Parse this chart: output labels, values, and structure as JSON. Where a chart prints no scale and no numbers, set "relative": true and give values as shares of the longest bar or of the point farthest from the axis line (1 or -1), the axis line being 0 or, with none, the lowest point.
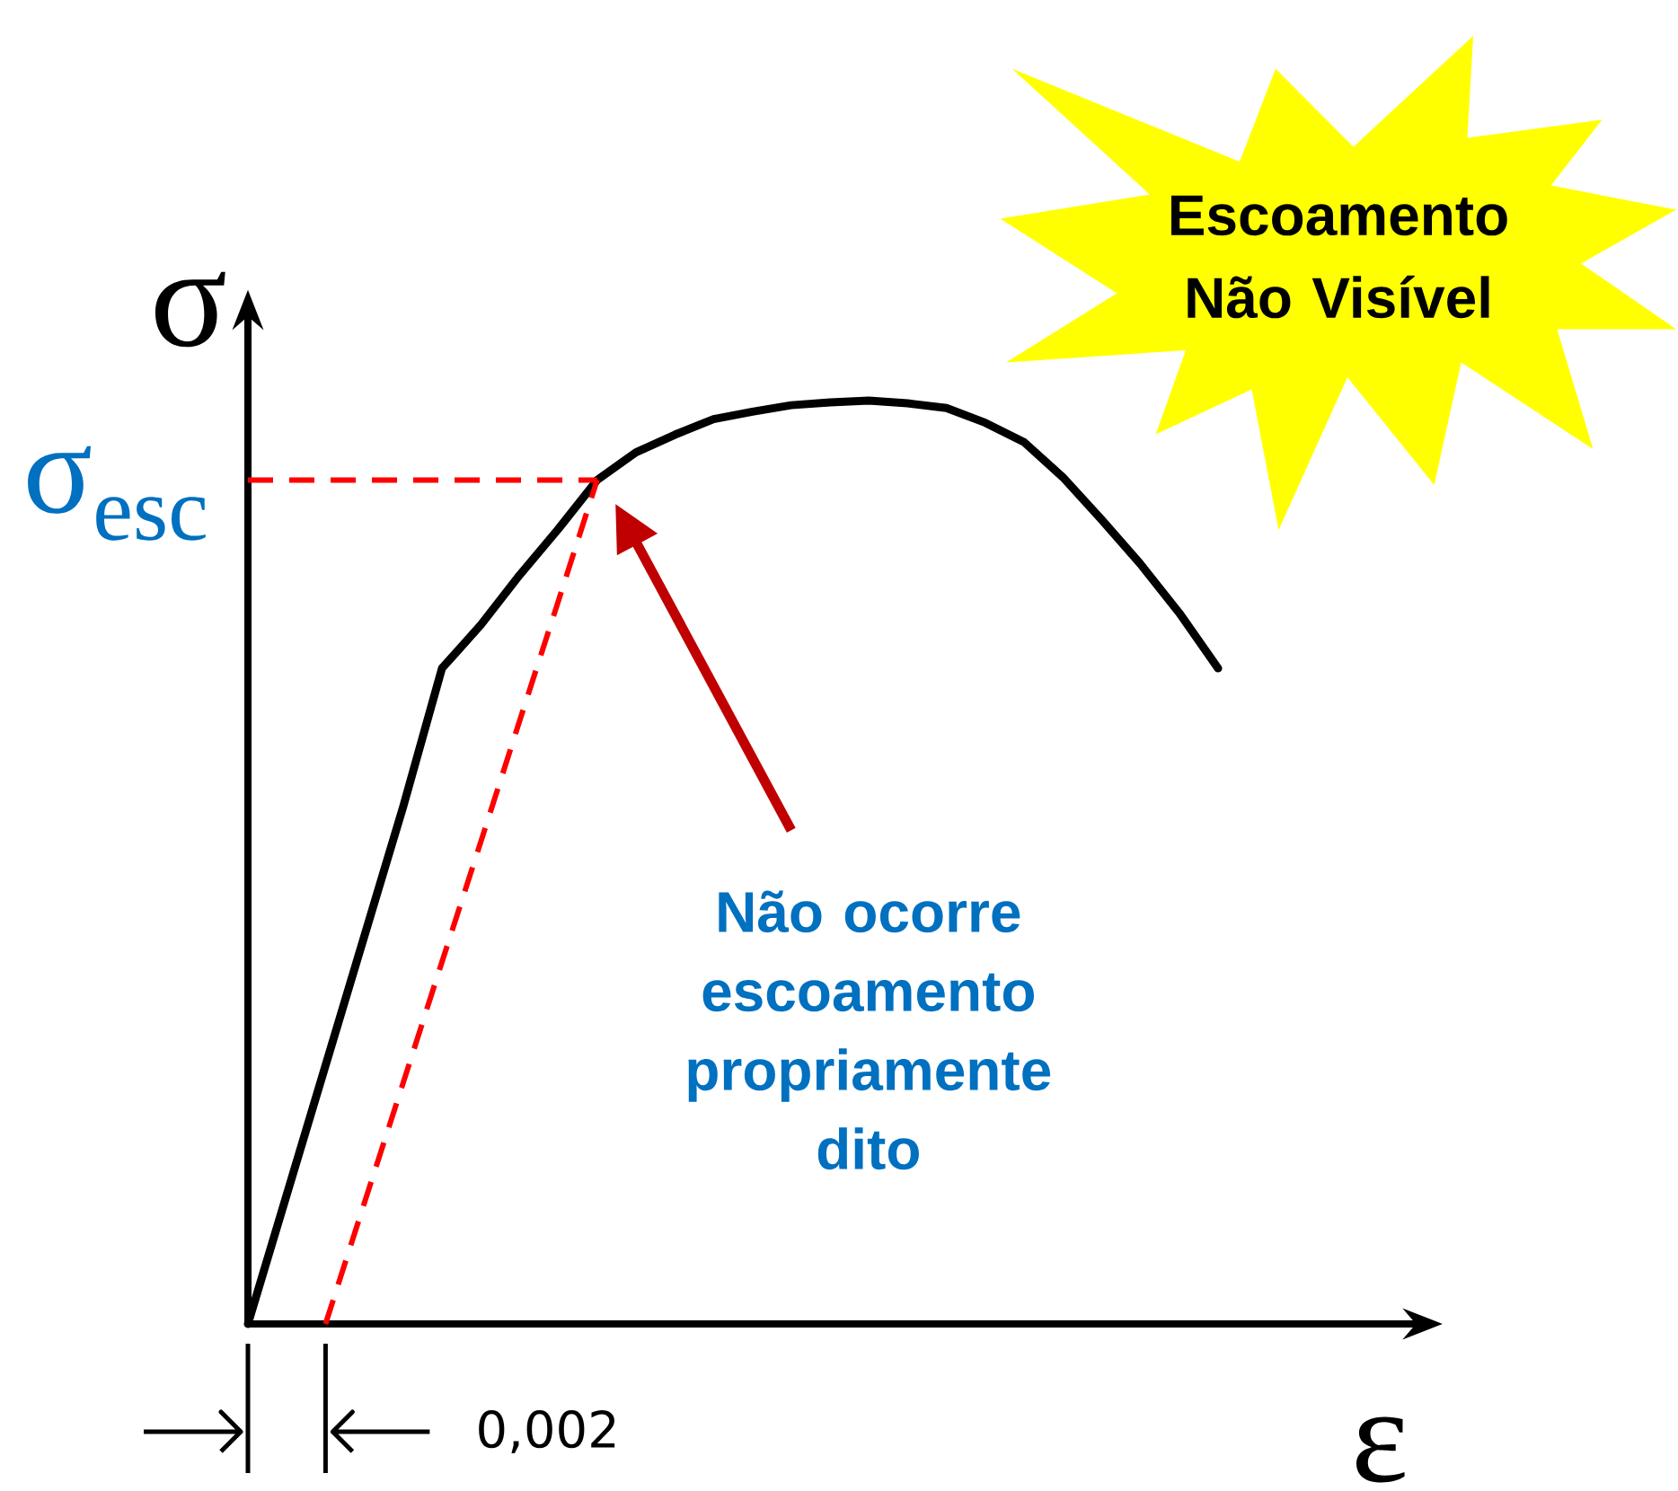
{
  "chart_data": {
    "type": "line",
    "title": "Escoamento Não Visível",
    "xlabel": "ε",
    "ylabel": "σ",
    "relative": true,
    "categories": [
      null,
      null,
      null,
      null,
      null,
      null,
      null,
      null,
      null,
      null,
      null,
      null,
      null,
      null,
      null,
      null,
      null,
      null,
      null,
      null,
      null,
      null,
      null,
      null,
      null,
      null
    ],
    "series": [
      {
        "color": "#000000",
        "line_style": "solid",
        "values": [
          0,
          0.14,
          0.28,
          0.42,
          0.56,
          0.71,
          0.757,
          0.811,
          0.861,
          0.914,
          0.944,
          0.963,
          0.98,
          0.988,
          0.995,
          0.998,
          1.0,
          0.997,
          0.992,
          0.976,
          0.955,
          0.917,
          0.871,
          0.823,
          0.77,
          0.71
        ]
      },
      {
        "color": "#ff0000",
        "line_style": "dashed",
        "values": [
          null,
          null,
          0,
          0.131,
          0.261,
          0.392,
          0.522,
          0.653,
          0.783,
          0.914,
          null,
          null,
          null,
          null,
          null,
          null,
          null,
          null,
          null,
          null,
          null,
          null,
          null,
          null,
          null,
          null
        ]
      }
    ],
    "ref_lines": [
      {
        "axis": "y",
        "value": 0.914,
        "label": "σ$_{esc}$",
        "color": "#ff0000",
        "line_style": "dashed"
      }
    ],
    "annotations": [
      "Não ocorre escoamento propriamente dito",
      "0,002"
    ]
  }
}
